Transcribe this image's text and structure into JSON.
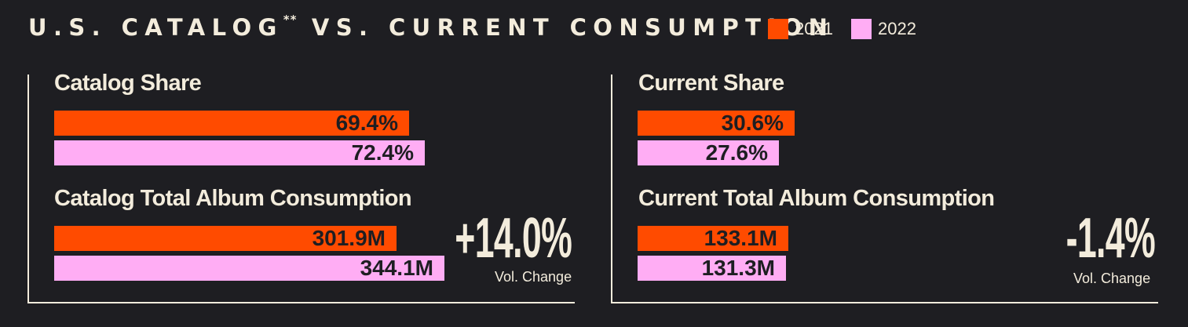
{
  "title": {
    "main": "U.S. CATALOG",
    "marker": "**",
    "rest": " VS. CURRENT CONSUMPTION"
  },
  "legend": [
    {
      "label": "2021",
      "color": "#ff4b00"
    },
    {
      "label": "2022",
      "color": "#ffadf4"
    }
  ],
  "catalog": {
    "share_title": "Catalog Share",
    "consumption_title": "Catalog Total Album Consumption",
    "vol_change": "+14.0%",
    "vol_change_label": "Vol. Change"
  },
  "current": {
    "share_title": "Current Share",
    "consumption_title": "Current Total Album Consumption",
    "vol_change": "-1.4%",
    "vol_change_label": "Vol. Change"
  },
  "chart_data": [
    {
      "type": "bar",
      "title": "Catalog Share",
      "unit": "%",
      "series": [
        {
          "name": "2021",
          "values": [
            69.4
          ],
          "label": "69.4%"
        },
        {
          "name": "2022",
          "values": [
            72.4
          ],
          "label": "72.4%"
        }
      ]
    },
    {
      "type": "bar",
      "title": "Catalog Total Album Consumption",
      "unit": "M",
      "series": [
        {
          "name": "2021",
          "values": [
            301.9
          ],
          "label": "301.9M"
        },
        {
          "name": "2022",
          "values": [
            344.1
          ],
          "label": "344.1M"
        }
      ]
    },
    {
      "type": "bar",
      "title": "Current Share",
      "unit": "%",
      "series": [
        {
          "name": "2021",
          "values": [
            30.6
          ],
          "label": "30.6%"
        },
        {
          "name": "2022",
          "values": [
            27.6
          ],
          "label": "27.6%"
        }
      ]
    },
    {
      "type": "bar",
      "title": "Current Total Album Consumption",
      "unit": "M",
      "series": [
        {
          "name": "2021",
          "values": [
            133.1
          ],
          "label": "133.1M"
        },
        {
          "name": "2022",
          "values": [
            131.3
          ],
          "label": "131.3M"
        }
      ]
    }
  ]
}
